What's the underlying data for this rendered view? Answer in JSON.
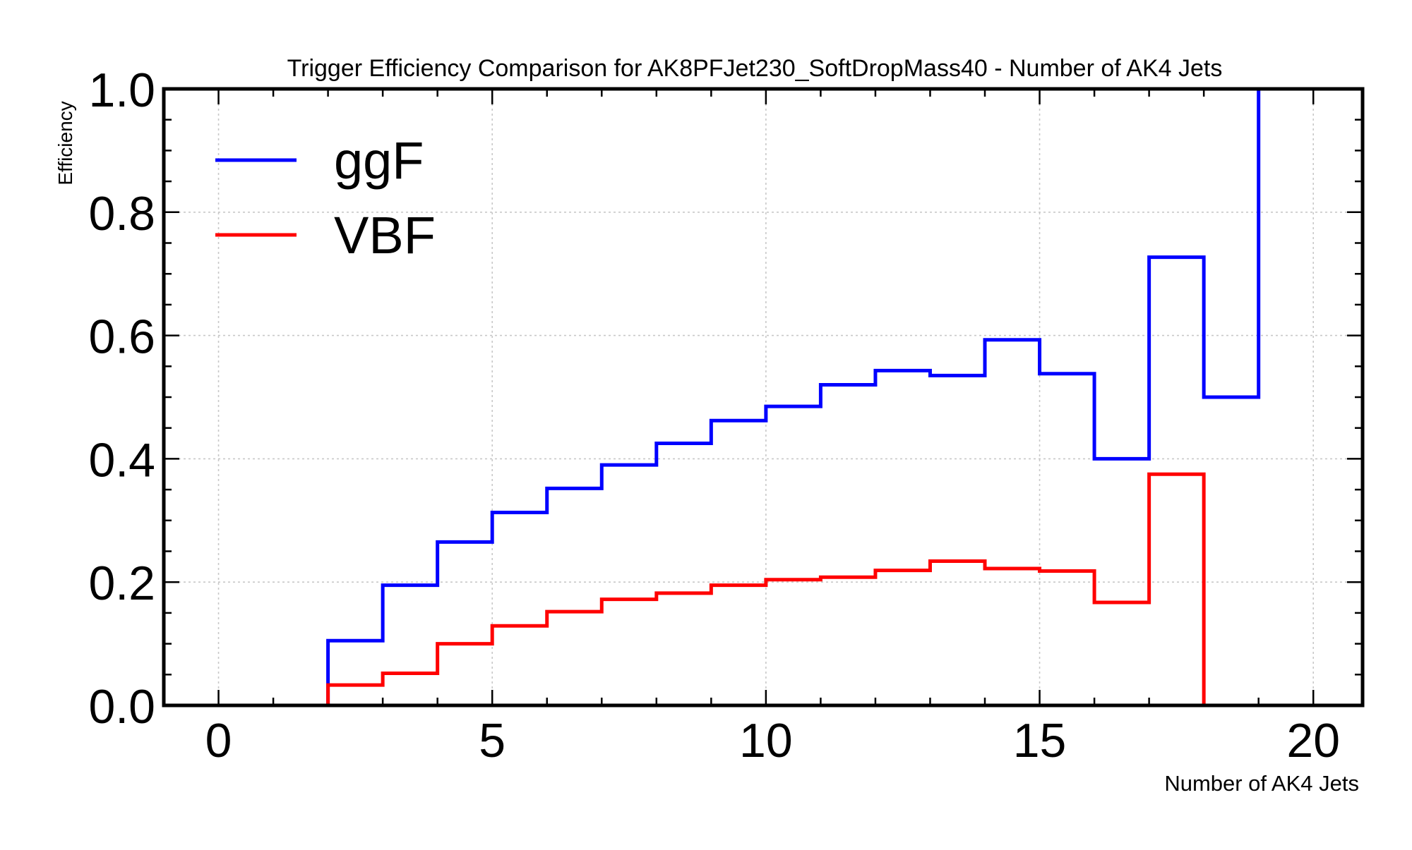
{
  "chart_data": {
    "type": "line",
    "title": "Trigger Efficiency Comparison for AK8PFJet230_SoftDropMass40 - Number of AK4 Jets",
    "xlabel": "Number of AK4 Jets",
    "ylabel": "Efficiency",
    "xlim": [
      -1,
      20.9
    ],
    "ylim": [
      0.0,
      1.0
    ],
    "xticks": [
      0,
      5,
      10,
      15,
      20
    ],
    "yticks": [
      0.0,
      0.2,
      0.4,
      0.6,
      0.8,
      1.0
    ],
    "xtick_labels": [
      "0",
      "5",
      "10",
      "15",
      "20"
    ],
    "ytick_labels": [
      "0.0",
      "0.2",
      "0.4",
      "0.6",
      "0.8",
      "1.0"
    ],
    "grid": true,
    "legend_position": "top-left",
    "bin_edges": [
      0,
      1,
      2,
      3,
      4,
      5,
      6,
      7,
      8,
      9,
      10,
      11,
      12,
      13,
      14,
      15,
      16,
      17,
      18,
      19,
      20
    ],
    "series": [
      {
        "name": "ggF",
        "color": "#0000ff",
        "style": "step",
        "values": [
          0.0,
          0.0,
          0.105,
          0.195,
          0.265,
          0.313,
          0.352,
          0.39,
          0.425,
          0.462,
          0.485,
          0.52,
          0.543,
          0.535,
          0.593,
          0.538,
          0.4,
          0.727,
          0.5,
          1.0
        ]
      },
      {
        "name": "VBF",
        "color": "#ff0000",
        "style": "step",
        "values": [
          0.0,
          0.0,
          0.033,
          0.052,
          0.1,
          0.129,
          0.152,
          0.172,
          0.182,
          0.195,
          0.204,
          0.208,
          0.219,
          0.234,
          0.222,
          0.218,
          0.167,
          0.375,
          0.0,
          0.0
        ]
      }
    ]
  }
}
